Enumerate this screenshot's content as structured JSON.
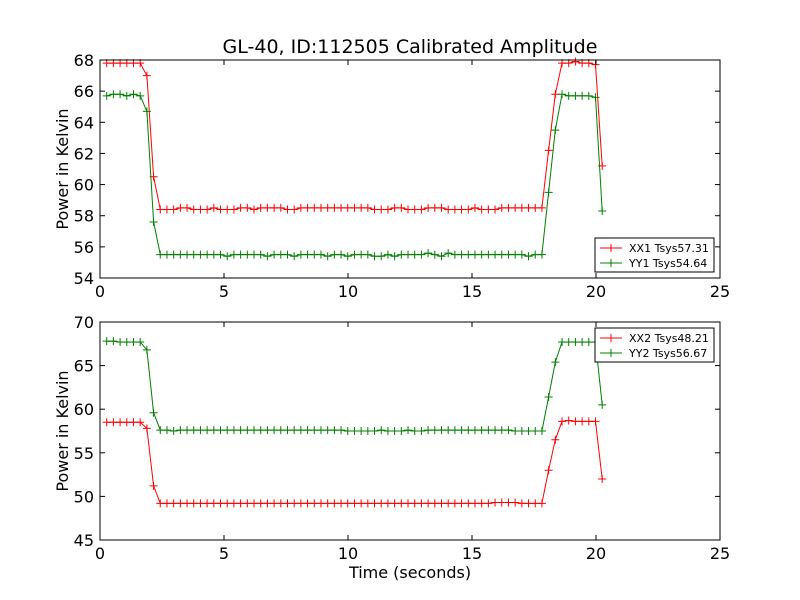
{
  "figure_title": "GL-40, ID:112505 Calibrated Amplitude",
  "chart_data": [
    {
      "type": "line",
      "title": "GL-40, ID:112505 Calibrated Amplitude",
      "xlabel": "",
      "ylabel": "Power in Kelvin",
      "xlim": [
        0,
        25
      ],
      "ylim": [
        54,
        68
      ],
      "xticks": [
        0,
        5,
        10,
        15,
        20,
        25
      ],
      "yticks": [
        54,
        56,
        58,
        60,
        62,
        64,
        66,
        68
      ],
      "grid": false,
      "legend": "lower-right",
      "marker": "+",
      "series": [
        {
          "name": "XX1 Tsys57.31",
          "color": "#ff0000",
          "x": [
            0.27,
            0.54,
            0.81,
            1.08,
            1.35,
            1.62,
            1.89,
            2.16,
            2.43,
            2.7,
            2.97,
            3.24,
            3.51,
            3.78,
            4.05,
            4.32,
            4.59,
            4.86,
            5.13,
            5.4,
            5.67,
            5.94,
            6.21,
            6.48,
            6.75,
            7.02,
            7.29,
            7.56,
            7.83,
            8.1,
            8.37,
            8.64,
            8.91,
            9.18,
            9.45,
            9.72,
            9.99,
            10.26,
            10.53,
            10.8,
            11.07,
            11.34,
            11.61,
            11.88,
            12.15,
            12.42,
            12.69,
            12.96,
            13.23,
            13.5,
            13.77,
            14.04,
            14.31,
            14.58,
            14.85,
            15.12,
            15.39,
            15.66,
            15.93,
            16.2,
            16.47,
            16.74,
            17.01,
            17.28,
            17.55,
            17.82,
            18.09,
            18.36,
            18.63,
            18.9,
            19.17,
            19.44,
            19.71,
            19.98,
            20.25
          ],
          "y": [
            67.8,
            67.8,
            67.8,
            67.8,
            67.8,
            67.8,
            67.0,
            60.5,
            58.4,
            58.4,
            58.4,
            58.5,
            58.5,
            58.4,
            58.4,
            58.4,
            58.5,
            58.4,
            58.4,
            58.4,
            58.5,
            58.5,
            58.4,
            58.5,
            58.5,
            58.5,
            58.5,
            58.4,
            58.4,
            58.5,
            58.5,
            58.5,
            58.5,
            58.5,
            58.5,
            58.5,
            58.5,
            58.5,
            58.5,
            58.5,
            58.4,
            58.4,
            58.4,
            58.5,
            58.5,
            58.4,
            58.4,
            58.4,
            58.5,
            58.5,
            58.5,
            58.4,
            58.4,
            58.4,
            58.4,
            58.5,
            58.4,
            58.4,
            58.4,
            58.5,
            58.5,
            58.5,
            58.5,
            58.5,
            58.5,
            58.5,
            62.2,
            65.8,
            67.8,
            67.8,
            67.9,
            67.8,
            67.8,
            67.7,
            61.2
          ]
        },
        {
          "name": "YY1 Tsys54.64",
          "color": "#008000",
          "x": [
            0.27,
            0.54,
            0.81,
            1.08,
            1.35,
            1.62,
            1.89,
            2.16,
            2.43,
            2.7,
            2.97,
            3.24,
            3.51,
            3.78,
            4.05,
            4.32,
            4.59,
            4.86,
            5.13,
            5.4,
            5.67,
            5.94,
            6.21,
            6.48,
            6.75,
            7.02,
            7.29,
            7.56,
            7.83,
            8.1,
            8.37,
            8.64,
            8.91,
            9.18,
            9.45,
            9.72,
            9.99,
            10.26,
            10.53,
            10.8,
            11.07,
            11.34,
            11.61,
            11.88,
            12.15,
            12.42,
            12.69,
            12.96,
            13.23,
            13.5,
            13.77,
            14.04,
            14.31,
            14.58,
            14.85,
            15.12,
            15.39,
            15.66,
            15.93,
            16.2,
            16.47,
            16.74,
            17.01,
            17.28,
            17.55,
            17.82,
            18.09,
            18.36,
            18.63,
            18.9,
            19.17,
            19.44,
            19.71,
            19.98,
            20.25
          ],
          "y": [
            65.7,
            65.8,
            65.8,
            65.7,
            65.8,
            65.7,
            64.7,
            57.6,
            55.5,
            55.5,
            55.5,
            55.5,
            55.5,
            55.5,
            55.5,
            55.5,
            55.5,
            55.5,
            55.4,
            55.5,
            55.5,
            55.5,
            55.5,
            55.5,
            55.4,
            55.5,
            55.5,
            55.5,
            55.4,
            55.5,
            55.5,
            55.5,
            55.5,
            55.4,
            55.5,
            55.5,
            55.4,
            55.5,
            55.5,
            55.5,
            55.4,
            55.4,
            55.5,
            55.4,
            55.5,
            55.5,
            55.5,
            55.5,
            55.6,
            55.5,
            55.4,
            55.6,
            55.5,
            55.5,
            55.5,
            55.5,
            55.5,
            55.5,
            55.5,
            55.5,
            55.5,
            55.5,
            55.5,
            55.4,
            55.5,
            55.5,
            59.5,
            63.5,
            65.8,
            65.7,
            65.7,
            65.7,
            65.7,
            65.6,
            58.3
          ]
        }
      ]
    },
    {
      "type": "line",
      "title": "",
      "xlabel": "Time (seconds)",
      "ylabel": "Power in Kelvin",
      "xlim": [
        0,
        25
      ],
      "ylim": [
        45,
        70
      ],
      "xticks": [
        0,
        5,
        10,
        15,
        20,
        25
      ],
      "yticks": [
        45,
        50,
        55,
        60,
        65,
        70
      ],
      "grid": false,
      "legend": "top-right",
      "marker": "+",
      "series": [
        {
          "name": "XX2 Tsys48.21",
          "color": "#ff0000",
          "x": [
            0.27,
            0.54,
            0.81,
            1.08,
            1.35,
            1.62,
            1.89,
            2.16,
            2.43,
            2.7,
            2.97,
            3.24,
            3.51,
            3.78,
            4.05,
            4.32,
            4.59,
            4.86,
            5.13,
            5.4,
            5.67,
            5.94,
            6.21,
            6.48,
            6.75,
            7.02,
            7.29,
            7.56,
            7.83,
            8.1,
            8.37,
            8.64,
            8.91,
            9.18,
            9.45,
            9.72,
            9.99,
            10.26,
            10.53,
            10.8,
            11.07,
            11.34,
            11.61,
            11.88,
            12.15,
            12.42,
            12.69,
            12.96,
            13.23,
            13.5,
            13.77,
            14.04,
            14.31,
            14.58,
            14.85,
            15.12,
            15.39,
            15.66,
            15.93,
            16.2,
            16.47,
            16.74,
            17.01,
            17.28,
            17.55,
            17.82,
            18.09,
            18.36,
            18.63,
            18.9,
            19.17,
            19.44,
            19.71,
            19.98,
            20.25
          ],
          "y": [
            58.5,
            58.5,
            58.5,
            58.5,
            58.5,
            58.5,
            57.8,
            51.2,
            49.2,
            49.2,
            49.2,
            49.2,
            49.2,
            49.2,
            49.2,
            49.2,
            49.2,
            49.2,
            49.2,
            49.2,
            49.2,
            49.2,
            49.2,
            49.2,
            49.2,
            49.2,
            49.2,
            49.2,
            49.2,
            49.2,
            49.2,
            49.2,
            49.2,
            49.2,
            49.2,
            49.2,
            49.2,
            49.2,
            49.2,
            49.2,
            49.2,
            49.2,
            49.2,
            49.2,
            49.2,
            49.2,
            49.2,
            49.2,
            49.2,
            49.2,
            49.2,
            49.2,
            49.2,
            49.2,
            49.2,
            49.2,
            49.2,
            49.2,
            49.3,
            49.3,
            49.3,
            49.3,
            49.2,
            49.2,
            49.2,
            49.2,
            53.0,
            56.5,
            58.6,
            58.7,
            58.6,
            58.6,
            58.6,
            58.6,
            52.0
          ]
        },
        {
          "name": "YY2 Tsys56.67",
          "color": "#008000",
          "x": [
            0.27,
            0.54,
            0.81,
            1.08,
            1.35,
            1.62,
            1.89,
            2.16,
            2.43,
            2.7,
            2.97,
            3.24,
            3.51,
            3.78,
            4.05,
            4.32,
            4.59,
            4.86,
            5.13,
            5.4,
            5.67,
            5.94,
            6.21,
            6.48,
            6.75,
            7.02,
            7.29,
            7.56,
            7.83,
            8.1,
            8.37,
            8.64,
            8.91,
            9.18,
            9.45,
            9.72,
            9.99,
            10.26,
            10.53,
            10.8,
            11.07,
            11.34,
            11.61,
            11.88,
            12.15,
            12.42,
            12.69,
            12.96,
            13.23,
            13.5,
            13.77,
            14.04,
            14.31,
            14.58,
            14.85,
            15.12,
            15.39,
            15.66,
            15.93,
            16.2,
            16.47,
            16.74,
            17.01,
            17.28,
            17.55,
            17.82,
            18.09,
            18.36,
            18.63,
            18.9,
            19.17,
            19.44,
            19.71,
            19.98,
            20.25
          ],
          "y": [
            67.8,
            67.8,
            67.7,
            67.7,
            67.7,
            67.7,
            66.8,
            59.6,
            57.6,
            57.6,
            57.5,
            57.6,
            57.6,
            57.6,
            57.6,
            57.6,
            57.6,
            57.6,
            57.6,
            57.6,
            57.6,
            57.6,
            57.6,
            57.6,
            57.6,
            57.6,
            57.6,
            57.6,
            57.6,
            57.6,
            57.6,
            57.6,
            57.6,
            57.6,
            57.6,
            57.6,
            57.5,
            57.5,
            57.5,
            57.5,
            57.5,
            57.6,
            57.5,
            57.5,
            57.5,
            57.6,
            57.5,
            57.5,
            57.6,
            57.6,
            57.6,
            57.6,
            57.6,
            57.6,
            57.6,
            57.6,
            57.6,
            57.6,
            57.6,
            57.6,
            57.6,
            57.5,
            57.5,
            57.5,
            57.5,
            57.5,
            61.4,
            65.4,
            67.7,
            67.7,
            67.7,
            67.7,
            67.7,
            67.7,
            60.5
          ]
        }
      ]
    }
  ]
}
